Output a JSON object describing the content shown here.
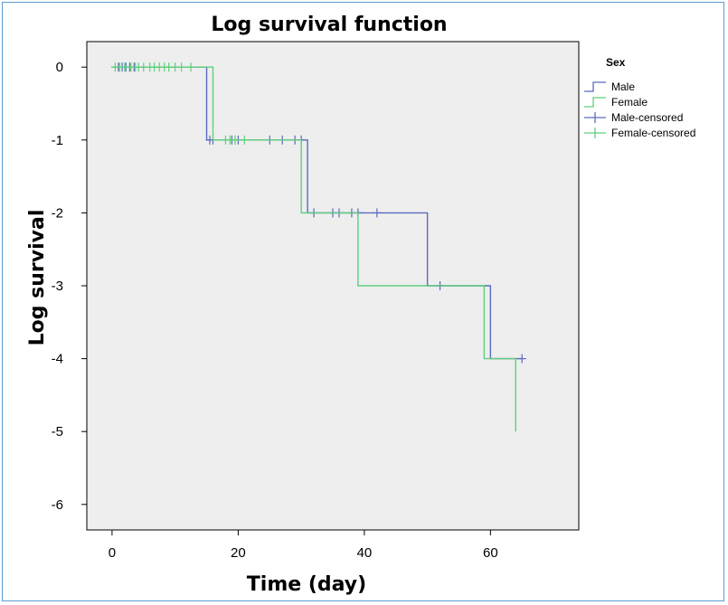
{
  "chart_data": {
    "type": "line",
    "title": "Log survival function",
    "xlabel": "Time (day)",
    "ylabel": "Log survival",
    "xlim": [
      -4,
      74
    ],
    "ylim": [
      -6.35,
      0.35
    ],
    "xticks": [
      0,
      20,
      40,
      60
    ],
    "yticks": [
      0,
      -1,
      -2,
      -3,
      -4,
      -5,
      -6
    ],
    "legend": {
      "title": "Sex",
      "position": "right",
      "entries": [
        "Male",
        "Female",
        "Male-censored",
        "Female-censored"
      ]
    },
    "colors": {
      "male": "#5b6bbf",
      "female": "#5fcf7d",
      "plot_bg": "#eeeeee",
      "frame": "#5b9bd5"
    },
    "series": [
      {
        "name": "Male",
        "steps": [
          [
            0,
            0
          ],
          [
            15,
            0
          ],
          [
            15,
            -1
          ],
          [
            31,
            -1
          ],
          [
            31,
            -2
          ],
          [
            50,
            -2
          ],
          [
            50,
            -3
          ],
          [
            60,
            -3
          ],
          [
            60,
            -4
          ],
          [
            65,
            -4
          ]
        ],
        "censored": [
          [
            1,
            0
          ],
          [
            1.6,
            0
          ],
          [
            2.2,
            0
          ],
          [
            2.8,
            0
          ],
          [
            3.5,
            0
          ],
          [
            15.5,
            -1
          ],
          [
            16,
            -1
          ],
          [
            19,
            -1
          ],
          [
            20,
            -1
          ],
          [
            25,
            -1
          ],
          [
            27,
            -1
          ],
          [
            29,
            -1
          ],
          [
            30,
            -1
          ],
          [
            32,
            -2
          ],
          [
            35,
            -2
          ],
          [
            36,
            -2
          ],
          [
            38,
            -2
          ],
          [
            39,
            -2
          ],
          [
            42,
            -2
          ],
          [
            52,
            -3
          ],
          [
            65,
            -4
          ]
        ]
      },
      {
        "name": "Female",
        "steps": [
          [
            0,
            0
          ],
          [
            16,
            0
          ],
          [
            16,
            -1
          ],
          [
            30,
            -1
          ],
          [
            30,
            -2
          ],
          [
            39,
            -2
          ],
          [
            39,
            -3
          ],
          [
            59,
            -3
          ],
          [
            59,
            -4
          ],
          [
            64,
            -4
          ],
          [
            64,
            -5
          ]
        ],
        "censored": [
          [
            0.5,
            0
          ],
          [
            1.2,
            0
          ],
          [
            2,
            0
          ],
          [
            3,
            0
          ],
          [
            3.7,
            0
          ],
          [
            4.2,
            0
          ],
          [
            5,
            0
          ],
          [
            6,
            0
          ],
          [
            6.7,
            0
          ],
          [
            7.5,
            0
          ],
          [
            8.3,
            0
          ],
          [
            9,
            0
          ],
          [
            10,
            0
          ],
          [
            11,
            0
          ],
          [
            12.5,
            0
          ],
          [
            18,
            -1
          ],
          [
            18.7,
            -1
          ],
          [
            19.5,
            -1
          ],
          [
            21,
            -1
          ]
        ]
      }
    ]
  }
}
